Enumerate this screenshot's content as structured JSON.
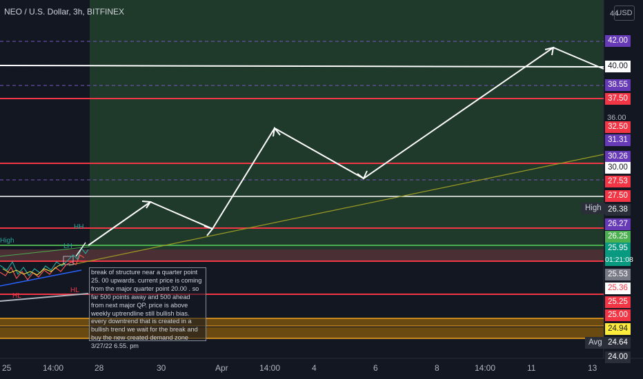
{
  "header": {
    "symbol_title": "NEO / U.S. Dollar, 3h, BITFINEX",
    "currency_button": "USD",
    "scale_top_truncated": "44"
  },
  "price_axis": {
    "labels": [
      {
        "text": "42.00",
        "bg": "#673ab7",
        "fg": "#ffffff"
      },
      {
        "text": "40.00",
        "bg": "#ffffff",
        "fg": "#131722"
      },
      {
        "text": "38.55",
        "bg": "#673ab7",
        "fg": "#ffffff"
      },
      {
        "text": "37.50",
        "bg": "#f23645",
        "fg": "#ffffff"
      },
      {
        "text": "32.50",
        "bg": "#f23645",
        "fg": "#ffffff"
      },
      {
        "text": "31.31",
        "bg": "#673ab7",
        "fg": "#ffffff"
      },
      {
        "text": "30.26",
        "bg": "#673ab7",
        "fg": "#ffffff"
      },
      {
        "text": "30.00",
        "bg": "#ffffff",
        "fg": "#131722"
      },
      {
        "text": "27.53",
        "bg": "#f23645",
        "fg": "#ffffff"
      },
      {
        "text": "27.50",
        "bg": "#f23645",
        "fg": "#ffffff"
      },
      {
        "text": "26.38",
        "bg": "#2a2e39",
        "fg": "#ffffff"
      },
      {
        "text": "26.27",
        "bg": "#673ab7",
        "fg": "#ffffff"
      },
      {
        "text": "26.25",
        "bg": "#4caf50",
        "fg": "#ffffff"
      },
      {
        "text": "25.53",
        "bg": "#787b86",
        "fg": "#ffffff"
      },
      {
        "text": "25.36",
        "bg": "#ffffff",
        "fg": "#f23645"
      },
      {
        "text": "25.25",
        "bg": "#f23645",
        "fg": "#ffffff"
      },
      {
        "text": "25.00",
        "bg": "#f23645",
        "fg": "#ffffff"
      },
      {
        "text": "24.94",
        "bg": "#ffeb3b",
        "fg": "#131722"
      },
      {
        "text": "24.64",
        "bg": "#2a2e39",
        "fg": "#ffffff"
      },
      {
        "text": "24.00",
        "bg": "#2a2e39",
        "fg": "#ffffff"
      }
    ],
    "plain_36": "36.00",
    "current_price": "25.95",
    "countdown": "01:21:08",
    "current_color": "#089981",
    "high_tag": "High",
    "avg_tag": "Avg"
  },
  "time_axis": {
    "ticks": [
      "25",
      "14:00",
      "28",
      "30",
      "Apr",
      "14:00",
      "4",
      "6",
      "8",
      "14:00",
      "11",
      "13"
    ]
  },
  "annotations": {
    "hh": "HH",
    "lh": "LH",
    "hl_left": "HL",
    "hl_right": "HL",
    "high_left": "High"
  },
  "note_text": "break of structure near a quarter point 25. 00 upwards. current price is coming from the major quarter point 20.00 . so far 500 points away and 500 ahead from next major QP. price is above weekly uptrendline  still bullish bias. every downtrend that is created in a bullish trend we wait for the break and buy the new created demand zone 3/27/22 6.55. pm"
}
